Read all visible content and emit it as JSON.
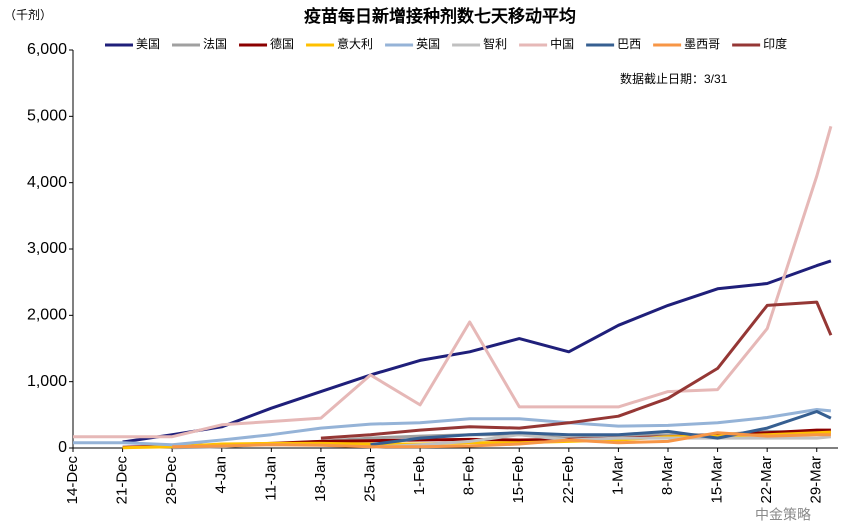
{
  "chart_data": {
    "type": "line",
    "title": "疫苗每日新增接种剂数七天移动平均",
    "unit_label": "（千剂）",
    "annotations": [
      "数据截止日期：3/31",
      "中金策略"
    ],
    "x": [
      0,
      7,
      14,
      21,
      28,
      35,
      42,
      49,
      56,
      63,
      70,
      77,
      84,
      91,
      98,
      105,
      107
    ],
    "xlim": [
      0,
      108
    ],
    "xticks": [
      {
        "value": 0,
        "label": "14-Dec"
      },
      {
        "value": 7,
        "label": "21-Dec"
      },
      {
        "value": 14,
        "label": "28-Dec"
      },
      {
        "value": 21,
        "label": "4-Jan"
      },
      {
        "value": 28,
        "label": "11-Jan"
      },
      {
        "value": 35,
        "label": "18-Jan"
      },
      {
        "value": 42,
        "label": "25-Jan"
      },
      {
        "value": 49,
        "label": "1-Feb"
      },
      {
        "value": 56,
        "label": "8-Feb"
      },
      {
        "value": 63,
        "label": "15-Feb"
      },
      {
        "value": 70,
        "label": "22-Feb"
      },
      {
        "value": 77,
        "label": "1-Mar"
      },
      {
        "value": 84,
        "label": "8-Mar"
      },
      {
        "value": 91,
        "label": "15-Mar"
      },
      {
        "value": 98,
        "label": "22-Mar"
      },
      {
        "value": 105,
        "label": "29-Mar"
      }
    ],
    "ylim": [
      0,
      6000
    ],
    "yticks": [
      0,
      {
        "value": 1000,
        "label": "1,000"
      },
      {
        "value": 2000,
        "label": "2,000"
      },
      {
        "value": 3000,
        "label": "3,000"
      },
      {
        "value": 4000,
        "label": "4,000"
      },
      {
        "value": 5000,
        "label": "5,000"
      },
      {
        "value": 6000,
        "label": "6,000"
      }
    ],
    "grid": false,
    "series": [
      {
        "name": "美国",
        "color": "#1f1f7a",
        "values": [
          null,
          90,
          200,
          320,
          600,
          850,
          1100,
          1320,
          1450,
          1650,
          1450,
          1850,
          2150,
          2400,
          2480,
          2750,
          2820
        ]
      },
      {
        "name": "法国",
        "color": "#a0a0a0",
        "values": [
          null,
          null,
          5,
          20,
          60,
          100,
          150,
          180,
          200,
          200,
          150,
          180,
          200,
          200,
          250,
          230,
          220
        ]
      },
      {
        "name": "德国",
        "color": "#8b0000",
        "values": [
          null,
          10,
          30,
          50,
          70,
          100,
          110,
          120,
          130,
          120,
          130,
          150,
          170,
          200,
          230,
          270,
          270
        ]
      },
      {
        "name": "意大利",
        "color": "#ffc000",
        "values": [
          null,
          5,
          20,
          60,
          70,
          70,
          60,
          60,
          80,
          80,
          100,
          120,
          170,
          180,
          200,
          230,
          240
        ]
      },
      {
        "name": "英国",
        "color": "#95b3d7",
        "values": [
          80,
          80,
          50,
          120,
          200,
          300,
          360,
          380,
          440,
          440,
          380,
          330,
          340,
          380,
          460,
          580,
          560
        ]
      },
      {
        "name": "智利",
        "color": "#c0c0c0",
        "values": [
          null,
          null,
          null,
          null,
          null,
          null,
          10,
          50,
          100,
          200,
          120,
          150,
          150,
          150,
          150,
          150,
          170
        ]
      },
      {
        "name": "中国",
        "color": "#e6b8b7",
        "values": [
          170,
          170,
          170,
          350,
          400,
          450,
          1100,
          650,
          1900,
          620,
          620,
          620,
          850,
          880,
          1800,
          4100,
          4850
        ]
      },
      {
        "name": "巴西",
        "color": "#365f91",
        "values": [
          null,
          null,
          null,
          null,
          null,
          null,
          50,
          150,
          200,
          230,
          200,
          200,
          250,
          150,
          300,
          550,
          450
        ]
      },
      {
        "name": "墨西哥",
        "color": "#f79646",
        "values": [
          null,
          null,
          20,
          30,
          50,
          40,
          20,
          20,
          30,
          60,
          120,
          80,
          100,
          230,
          180,
          200,
          200
        ]
      },
      {
        "name": "印度",
        "color": "#953735",
        "values": [
          null,
          null,
          null,
          null,
          null,
          150,
          200,
          270,
          320,
          300,
          380,
          480,
          750,
          1200,
          2150,
          2200,
          1700
        ]
      }
    ]
  }
}
